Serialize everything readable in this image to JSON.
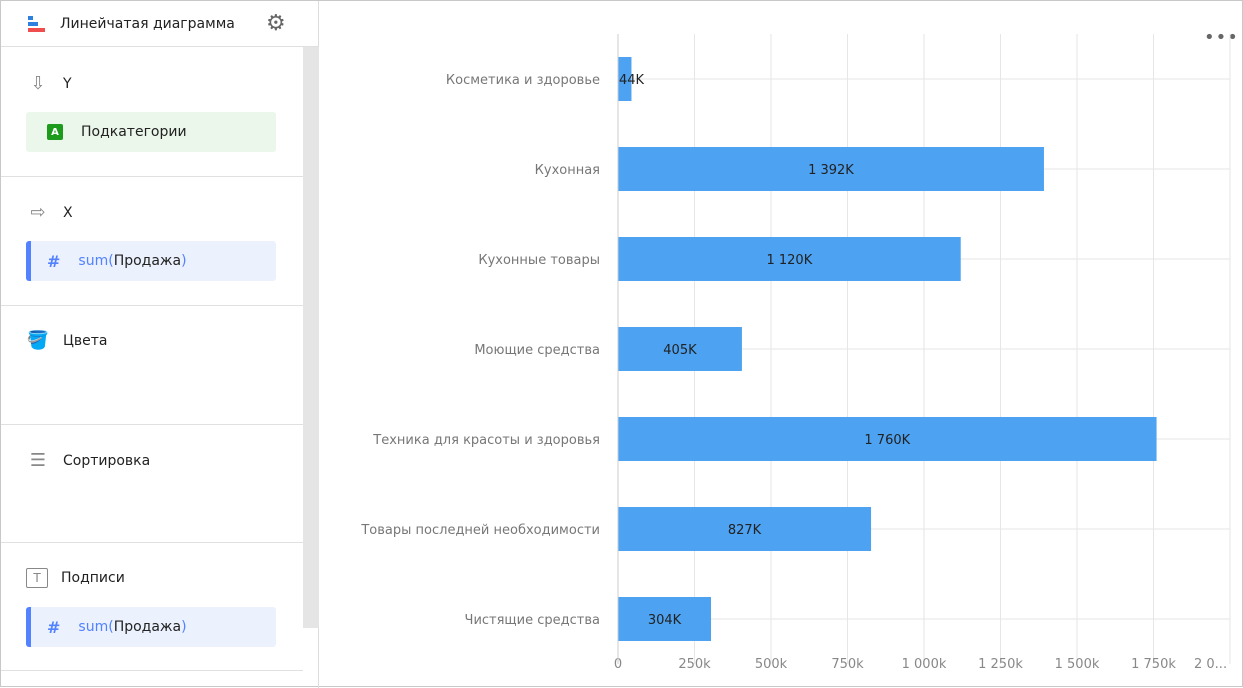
{
  "sidebar": {
    "title": "Линейчатая диаграмма",
    "sections": [
      {
        "label": "Y",
        "field": "Подкатегории"
      },
      {
        "label": "X",
        "field_fn": "sum",
        "field_arg": "Продажа"
      },
      {
        "label": "Цвета"
      },
      {
        "label": "Сортировка"
      },
      {
        "label": "Подписи",
        "field_fn": "sum",
        "field_arg": "Продажа"
      }
    ]
  },
  "colors": {
    "bar": "#4da2f1",
    "accent": "#5282ff"
  },
  "chart_data": {
    "type": "bar",
    "orientation": "horizontal",
    "categories": [
      "Косметика и здоровье",
      "Кухонная",
      "Кухонные товары",
      "Моющие средства",
      "Техника для красоты и здоровья",
      "Товары последней необходимости",
      "Чистящие средства"
    ],
    "values": [
      44,
      1392,
      1120,
      405,
      1760,
      827,
      304
    ],
    "data_labels": [
      "44K",
      "1 392K",
      "1 120K",
      "405K",
      "1 760K",
      "827K",
      "304K"
    ],
    "xticks": [
      0,
      250,
      500,
      750,
      1000,
      1250,
      1500,
      1750,
      2000
    ],
    "xtick_labels": [
      "0",
      "250k",
      "500k",
      "750k",
      "1 000k",
      "1 250k",
      "1 500k",
      "1 750k",
      "2 0..."
    ],
    "xlim": [
      0,
      2000
    ],
    "grid": true
  }
}
